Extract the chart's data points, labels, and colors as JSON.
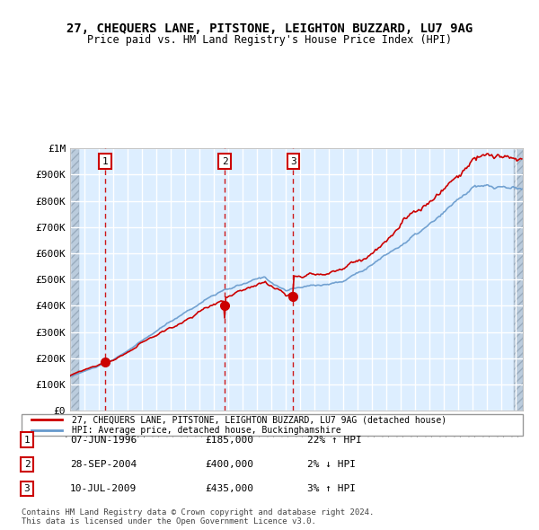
{
  "title": "27, CHEQUERS LANE, PITSTONE, LEIGHTON BUZZARD, LU7 9AG",
  "subtitle": "Price paid vs. HM Land Registry's House Price Index (HPI)",
  "legend_line1": "27, CHEQUERS LANE, PITSTONE, LEIGHTON BUZZARD, LU7 9AG (detached house)",
  "legend_line2": "HPI: Average price, detached house, Buckinghamshire",
  "transactions": [
    {
      "num": 1,
      "date": "07-JUN-1996",
      "price": 185000,
      "hpi_pct": "22%",
      "hpi_dir": "↑"
    },
    {
      "num": 2,
      "date": "28-SEP-2004",
      "price": 400000,
      "hpi_pct": "2%",
      "hpi_dir": "↓"
    },
    {
      "num": 3,
      "date": "10-JUL-2009",
      "price": 435000,
      "hpi_pct": "3%",
      "hpi_dir": "↑"
    }
  ],
  "transaction_years": [
    1996.44,
    2004.75,
    2009.53
  ],
  "transaction_prices": [
    185000,
    400000,
    435000
  ],
  "footer": "Contains HM Land Registry data © Crown copyright and database right 2024.\nThis data is licensed under the Open Government Licence v3.0.",
  "red_line_color": "#cc0000",
  "blue_line_color": "#6699cc",
  "bg_color": "#ddeeff",
  "grid_color": "#ffffff",
  "hatch_color": "#bbccdd",
  "ylim": [
    0,
    1000000
  ],
  "xlim_start": 1994.0,
  "xlim_end": 2025.5
}
